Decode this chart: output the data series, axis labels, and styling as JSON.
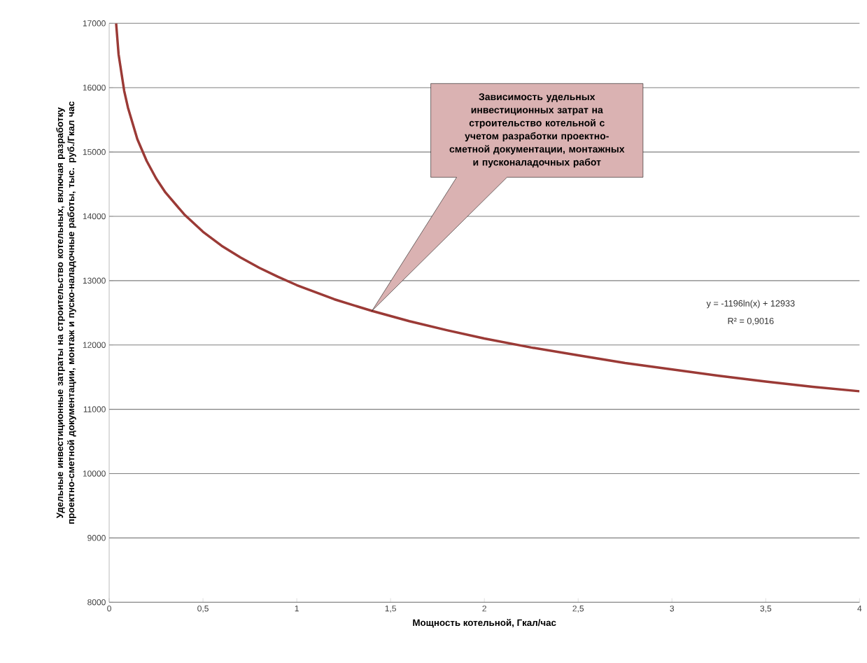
{
  "chart_data": {
    "type": "line",
    "xlabel": "Мощность котельной, Гкал/час",
    "ylabel": "Удельные инвестиционные затраты на строительство котельных, включая разработку проектно-сметной документации, монтаж и пуско-наладочные работы, тыс. руб./Гкал час",
    "x": [
      0.037,
      0.05,
      0.08,
      0.1,
      0.15,
      0.2,
      0.25,
      0.3,
      0.4,
      0.5,
      0.6,
      0.7,
      0.8,
      0.9,
      1,
      1.2,
      1.4,
      1.6,
      1.8,
      2,
      2.25,
      2.5,
      2.75,
      3,
      3.25,
      3.5,
      3.75,
      4
    ],
    "series": [
      {
        "color": "#9b3a36",
        "values": [
          17000,
          16520,
          15950,
          15690,
          15200,
          14860,
          14590,
          14370,
          14030,
          13760,
          13540,
          13360,
          13200,
          13060,
          12930,
          12710,
          12530,
          12370,
          12230,
          12100,
          11960,
          11840,
          11720,
          11620,
          11520,
          11430,
          11350,
          11280
        ]
      }
    ],
    "annotations": [
      "Зависимость удельных инвестиционных затрат на строительство котельной с учетом разработки проектно-сметной документации, монтажных и пусконаладочных работ",
      "y = -1196ln(x) + 12933",
      "R² = 0,9016"
    ],
    "xlim": [
      0,
      4
    ],
    "ylim": [
      8000,
      17000
    ],
    "xticks": [
      0,
      {
        "value": 0.5,
        "label": "0,5"
      },
      1,
      {
        "value": 1.5,
        "label": "1,5"
      },
      2,
      {
        "value": 2.5,
        "label": "2,5"
      },
      3,
      {
        "value": 3.5,
        "label": "3,5"
      },
      4
    ],
    "yticks": [
      8000,
      9000,
      10000,
      11000,
      12000,
      13000,
      14000,
      15000,
      16000,
      17000
    ],
    "grid": "y",
    "marker": "none",
    "line_style": "solid"
  }
}
